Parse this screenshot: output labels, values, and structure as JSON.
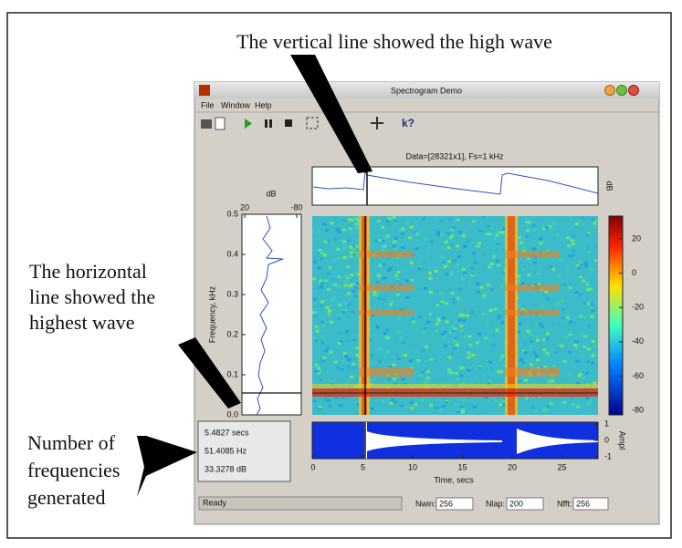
{
  "annotations": {
    "top": "The vertical line showed the high wave",
    "left": [
      "The horizontal",
      "line showed the",
      "highest wave"
    ],
    "bottom": [
      "Number of",
      "frequencies",
      "generated"
    ]
  },
  "window": {
    "title": "Spectrogram Demo",
    "menu": [
      "File",
      "Window",
      "Help"
    ]
  },
  "figure": {
    "data_label": "Data=[28321x1], Fs=1 kHz",
    "top_axis_label": "dB",
    "left_axis": {
      "top_label": "dB",
      "xticks": [
        20,
        -80
      ],
      "yticks": [
        0.5,
        0.4,
        0.3,
        0.2,
        0.1,
        {
          "value": 0,
          "label": "0.0"
        }
      ],
      "ylabel": "Frequency, kHz"
    },
    "colorbar": {
      "ticks": [
        20,
        0,
        -20,
        -40,
        -60,
        -80
      ]
    },
    "bottom_axis": {
      "yticks": [
        1,
        0,
        -1
      ],
      "ylabel": "Ampl",
      "xticks": [
        0,
        5,
        10,
        15,
        20,
        25
      ],
      "xlabel": "Time, secs"
    },
    "readout": [
      "5.4827 secs",
      "51.4085 Hz",
      "33.3278 dB"
    ]
  },
  "status": {
    "text": "Ready",
    "fields": [
      {
        "label": "Nwin:",
        "value": 256
      },
      {
        "label": "Nlap:",
        "value": 200
      },
      {
        "label": "Nfft:",
        "value": 256
      }
    ]
  }
}
